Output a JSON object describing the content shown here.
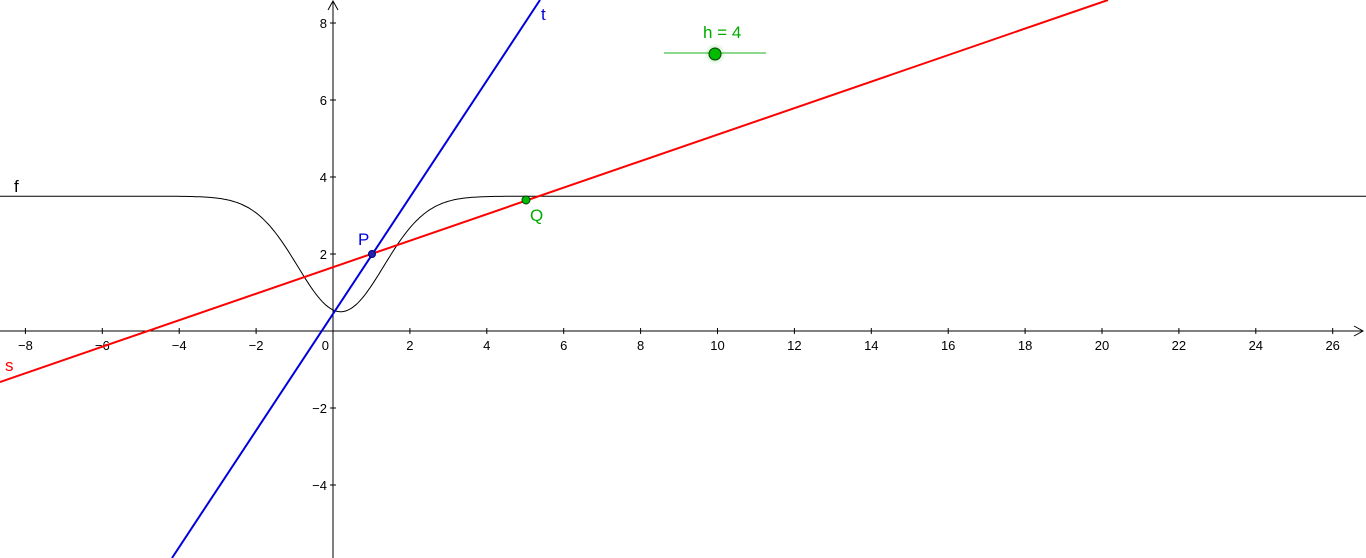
{
  "graphics_view": {
    "x_ticks": [
      "−8",
      "−6",
      "−4",
      "−2",
      "0",
      "2",
      "4",
      "6",
      "8",
      "10",
      "12",
      "14",
      "16",
      "18",
      "20",
      "22",
      "24",
      "26"
    ],
    "y_ticks": [
      "−4",
      "−2",
      "2",
      "4",
      "6",
      "8"
    ],
    "objects": {
      "function_f": {
        "label": "f",
        "color": "#000000",
        "note_formula_shape": "sigmoid-like curve with minimum near x=0.2"
      },
      "tangent_t": {
        "label": "t",
        "color": "#0000ff"
      },
      "secant_s": {
        "label": "s",
        "color": "#ff0000"
      },
      "point_P": {
        "label": "P",
        "color": "#0000ff"
      },
      "point_Q": {
        "label": "Q",
        "color": "#00aa00"
      }
    },
    "slider_h": {
      "label": "h = 4",
      "value": 4,
      "color": "#00aa00"
    }
  },
  "chart_data": {
    "type": "line",
    "xlim": [
      -8.6,
      26.7
    ],
    "ylim": [
      -5.8,
      8.6
    ],
    "grid": false,
    "series": [
      {
        "name": "f",
        "function": "3.5 - 3*exp(-(x-0.2)^2/2.5)"
      },
      {
        "name": "t",
        "x": [
          -4.1,
          5.4
        ],
        "y": [
          -5.8,
          8.6
        ]
      },
      {
        "name": "s",
        "x": [
          -8.6,
          20.1
        ],
        "y": [
          -1.4,
          8.6
        ]
      }
    ],
    "points": [
      {
        "name": "P",
        "x": 1,
        "y": 2
      },
      {
        "name": "Q",
        "x": 5,
        "y": 3.4
      }
    ]
  }
}
